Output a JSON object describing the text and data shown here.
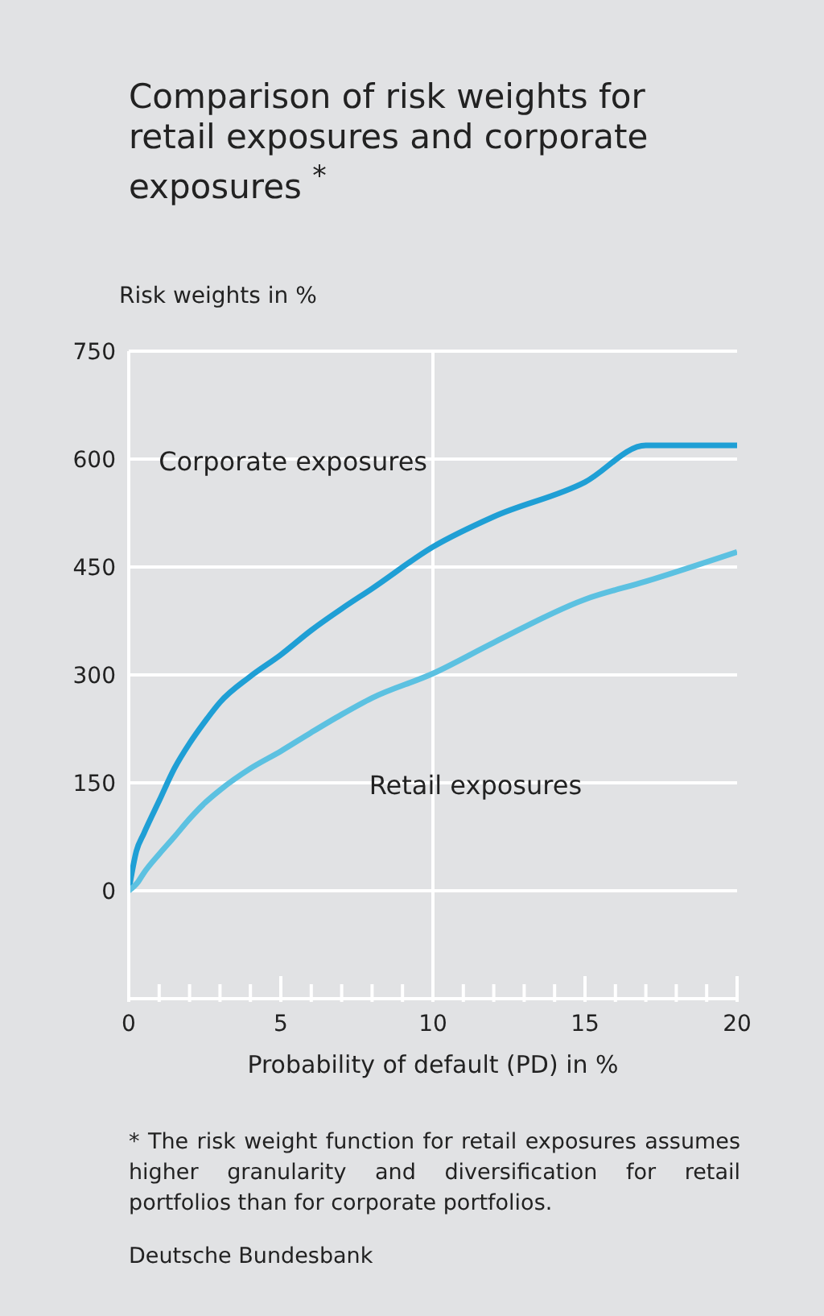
{
  "chart_data": {
    "type": "line",
    "title": "Comparison of risk weights for retail exposures and corporate exposures $^{*}$",
    "xlabel": "Probability of default (PD) in %",
    "ylabel": "Risk weights in %",
    "xlim": [
      0,
      20
    ],
    "ylim": [
      -150,
      750
    ],
    "xticks": [
      0,
      {
        "value": 1,
        "label": null
      },
      {
        "value": 2,
        "label": null
      },
      {
        "value": 3,
        "label": null
      },
      {
        "value": 4,
        "label": null
      },
      5,
      {
        "value": 6,
        "label": null
      },
      {
        "value": 7,
        "label": null
      },
      {
        "value": 8,
        "label": null
      },
      {
        "value": 9,
        "label": null
      },
      10,
      {
        "value": 11,
        "label": null
      },
      {
        "value": 12,
        "label": null
      },
      {
        "value": 13,
        "label": null
      },
      {
        "value": 14,
        "label": null
      },
      15,
      {
        "value": 16,
        "label": null
      },
      {
        "value": 17,
        "label": null
      },
      {
        "value": 18,
        "label": null
      },
      {
        "value": 19,
        "label": null
      },
      20
    ],
    "yticks": [
      0,
      150,
      300,
      450,
      600,
      750
    ],
    "grid": "y",
    "marker": "none",
    "line_style": "solid",
    "ref_lines": [
      {
        "axis": "x",
        "value": 10,
        "color": "#ffffff"
      }
    ],
    "series": [
      {
        "name": "Corporate exposures",
        "color": "#1f9fd5",
        "x": [
          0,
          0.25,
          0.5,
          1,
          1.5,
          2,
          2.5,
          3,
          4,
          5,
          6,
          7,
          8,
          10,
          12,
          15,
          17,
          18,
          20
        ],
        "values": [
          0,
          55,
          80,
          125,
          170,
          205,
          235,
          262,
          298,
          328,
          362,
          392,
          420,
          478,
          520,
          568,
          619,
          619,
          619
        ]
      },
      {
        "name": "Retail exposures",
        "color": "#5cc1e1",
        "x": [
          0,
          0.3,
          0.5,
          1,
          1.5,
          2,
          2.5,
          3,
          4,
          5,
          6,
          7,
          8,
          10,
          12,
          15,
          17,
          20
        ],
        "values": [
          0,
          12,
          25,
          51,
          75,
          100,
          122,
          140,
          170,
          194,
          220,
          245,
          268,
          302,
          345,
          405,
          430,
          471
        ]
      }
    ],
    "annotations": [
      "* The risk weight function for retail exposures assumes higher granularity and diversification for retail portfolios than for corporate portfolios.",
      "Deutsche Bundesbank"
    ]
  }
}
